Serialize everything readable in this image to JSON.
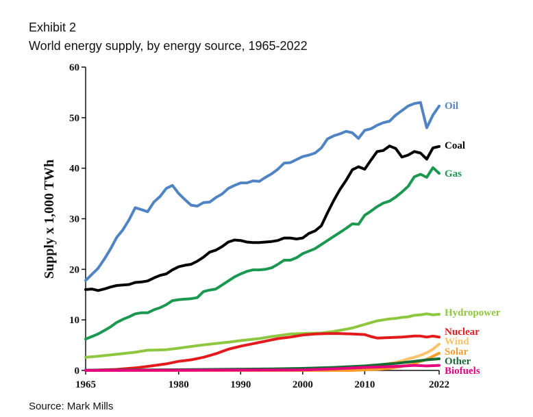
{
  "header": {
    "exhibit": "Exhibit 2",
    "title": "World energy supply, by energy source, 1965-2022"
  },
  "footer": {
    "source": "Source: Mark Mills"
  },
  "chart_data": {
    "type": "line",
    "title": "World energy supply, by energy source, 1965-2022",
    "xlabel": "",
    "ylabel": "Supply x 1,000 TWh",
    "xlim": [
      1965,
      2022
    ],
    "ylim": [
      0,
      60
    ],
    "x_ticks": [
      1965,
      1980,
      1990,
      2000,
      2010,
      2022
    ],
    "y_ticks": [
      0,
      10,
      20,
      30,
      40,
      50,
      60
    ],
    "grid": false,
    "legend": "inline-right",
    "series": [
      {
        "name": "Oil",
        "color": "#4f83c4",
        "points": [
          [
            1965,
            17.8
          ],
          [
            1966,
            19.0
          ],
          [
            1967,
            20.2
          ],
          [
            1968,
            22.0
          ],
          [
            1969,
            24.0
          ],
          [
            1970,
            26.3
          ],
          [
            1971,
            27.8
          ],
          [
            1972,
            29.8
          ],
          [
            1973,
            32.2
          ],
          [
            1974,
            31.8
          ],
          [
            1975,
            31.4
          ],
          [
            1976,
            33.3
          ],
          [
            1977,
            34.4
          ],
          [
            1978,
            36.0
          ],
          [
            1979,
            36.6
          ],
          [
            1980,
            35.0
          ],
          [
            1981,
            33.8
          ],
          [
            1982,
            32.7
          ],
          [
            1983,
            32.5
          ],
          [
            1984,
            33.2
          ],
          [
            1985,
            33.3
          ],
          [
            1986,
            34.2
          ],
          [
            1987,
            34.9
          ],
          [
            1988,
            36.0
          ],
          [
            1989,
            36.6
          ],
          [
            1990,
            37.1
          ],
          [
            1991,
            37.1
          ],
          [
            1992,
            37.5
          ],
          [
            1993,
            37.4
          ],
          [
            1994,
            38.2
          ],
          [
            1995,
            38.9
          ],
          [
            1996,
            39.8
          ],
          [
            1997,
            41.0
          ],
          [
            1998,
            41.1
          ],
          [
            1999,
            41.7
          ],
          [
            2000,
            42.3
          ],
          [
            2001,
            42.6
          ],
          [
            2002,
            43.0
          ],
          [
            2003,
            44.0
          ],
          [
            2004,
            45.8
          ],
          [
            2005,
            46.4
          ],
          [
            2006,
            46.8
          ],
          [
            2007,
            47.3
          ],
          [
            2008,
            47.0
          ],
          [
            2009,
            45.9
          ],
          [
            2010,
            47.5
          ],
          [
            2011,
            47.8
          ],
          [
            2012,
            48.5
          ],
          [
            2013,
            49.0
          ],
          [
            2014,
            49.3
          ],
          [
            2015,
            50.5
          ],
          [
            2016,
            51.4
          ],
          [
            2017,
            52.3
          ],
          [
            2018,
            52.8
          ],
          [
            2019,
            53.0
          ],
          [
            2020,
            48.0
          ],
          [
            2021,
            50.5
          ],
          [
            2022,
            52.3
          ]
        ]
      },
      {
        "name": "Coal",
        "color": "#000000",
        "points": [
          [
            1965,
            16.0
          ],
          [
            1966,
            16.1
          ],
          [
            1967,
            15.8
          ],
          [
            1968,
            16.1
          ],
          [
            1969,
            16.5
          ],
          [
            1970,
            16.8
          ],
          [
            1971,
            16.9
          ],
          [
            1972,
            17.0
          ],
          [
            1973,
            17.4
          ],
          [
            1974,
            17.5
          ],
          [
            1975,
            17.7
          ],
          [
            1976,
            18.3
          ],
          [
            1977,
            18.8
          ],
          [
            1978,
            19.1
          ],
          [
            1979,
            19.9
          ],
          [
            1980,
            20.5
          ],
          [
            1981,
            20.8
          ],
          [
            1982,
            21.0
          ],
          [
            1983,
            21.6
          ],
          [
            1984,
            22.4
          ],
          [
            1985,
            23.4
          ],
          [
            1986,
            23.8
          ],
          [
            1987,
            24.5
          ],
          [
            1988,
            25.4
          ],
          [
            1989,
            25.8
          ],
          [
            1990,
            25.7
          ],
          [
            1991,
            25.4
          ],
          [
            1992,
            25.3
          ],
          [
            1993,
            25.3
          ],
          [
            1994,
            25.4
          ],
          [
            1995,
            25.5
          ],
          [
            1996,
            25.7
          ],
          [
            1997,
            26.2
          ],
          [
            1998,
            26.2
          ],
          [
            1999,
            26.0
          ],
          [
            2000,
            26.2
          ],
          [
            2001,
            27.1
          ],
          [
            2002,
            27.6
          ],
          [
            2003,
            28.6
          ],
          [
            2004,
            31.2
          ],
          [
            2005,
            33.6
          ],
          [
            2006,
            35.8
          ],
          [
            2007,
            37.6
          ],
          [
            2008,
            39.7
          ],
          [
            2009,
            40.3
          ],
          [
            2010,
            39.8
          ],
          [
            2011,
            41.6
          ],
          [
            2012,
            43.3
          ],
          [
            2013,
            43.5
          ],
          [
            2014,
            44.4
          ],
          [
            2015,
            43.9
          ],
          [
            2016,
            42.2
          ],
          [
            2017,
            42.6
          ],
          [
            2018,
            43.3
          ],
          [
            2019,
            43.0
          ],
          [
            2020,
            41.8
          ],
          [
            2021,
            44.0
          ],
          [
            2022,
            44.3
          ]
        ]
      },
      {
        "name": "Gas",
        "color": "#1a9850",
        "points": [
          [
            1965,
            6.2
          ],
          [
            1966,
            6.7
          ],
          [
            1967,
            7.2
          ],
          [
            1968,
            7.9
          ],
          [
            1969,
            8.6
          ],
          [
            1970,
            9.5
          ],
          [
            1971,
            10.1
          ],
          [
            1972,
            10.6
          ],
          [
            1973,
            11.2
          ],
          [
            1974,
            11.4
          ],
          [
            1975,
            11.4
          ],
          [
            1976,
            12.0
          ],
          [
            1977,
            12.4
          ],
          [
            1978,
            13.0
          ],
          [
            1979,
            13.8
          ],
          [
            1980,
            14.0
          ],
          [
            1981,
            14.1
          ],
          [
            1982,
            14.2
          ],
          [
            1983,
            14.4
          ],
          [
            1984,
            15.6
          ],
          [
            1985,
            15.9
          ],
          [
            1986,
            16.1
          ],
          [
            1987,
            16.9
          ],
          [
            1988,
            17.7
          ],
          [
            1989,
            18.5
          ],
          [
            1990,
            19.1
          ],
          [
            1991,
            19.6
          ],
          [
            1992,
            19.9
          ],
          [
            1993,
            19.9
          ],
          [
            1994,
            20.0
          ],
          [
            1995,
            20.3
          ],
          [
            1996,
            21.0
          ],
          [
            1997,
            21.8
          ],
          [
            1998,
            21.8
          ],
          [
            1999,
            22.3
          ],
          [
            2000,
            23.1
          ],
          [
            2001,
            23.6
          ],
          [
            2002,
            24.1
          ],
          [
            2003,
            24.9
          ],
          [
            2004,
            25.7
          ],
          [
            2005,
            26.5
          ],
          [
            2006,
            27.3
          ],
          [
            2007,
            28.1
          ],
          [
            2008,
            29.0
          ],
          [
            2009,
            28.9
          ],
          [
            2010,
            30.7
          ],
          [
            2011,
            31.5
          ],
          [
            2012,
            32.4
          ],
          [
            2013,
            33.1
          ],
          [
            2014,
            33.5
          ],
          [
            2015,
            34.3
          ],
          [
            2016,
            35.3
          ],
          [
            2017,
            36.4
          ],
          [
            2018,
            38.3
          ],
          [
            2019,
            38.8
          ],
          [
            2020,
            38.2
          ],
          [
            2021,
            40.1
          ],
          [
            2022,
            39.0
          ]
        ]
      },
      {
        "name": "Hydropower",
        "color": "#8dc63f",
        "points": [
          [
            1965,
            2.6
          ],
          [
            1967,
            2.8
          ],
          [
            1970,
            3.2
          ],
          [
            1973,
            3.6
          ],
          [
            1975,
            4.0
          ],
          [
            1978,
            4.1
          ],
          [
            1980,
            4.4
          ],
          [
            1983,
            4.9
          ],
          [
            1985,
            5.2
          ],
          [
            1988,
            5.6
          ],
          [
            1990,
            5.9
          ],
          [
            1993,
            6.3
          ],
          [
            1995,
            6.7
          ],
          [
            1998,
            7.2
          ],
          [
            2000,
            7.3
          ],
          [
            2003,
            7.4
          ],
          [
            2005,
            7.7
          ],
          [
            2008,
            8.4
          ],
          [
            2010,
            9.1
          ],
          [
            2012,
            9.8
          ],
          [
            2014,
            10.2
          ],
          [
            2015,
            10.3
          ],
          [
            2016,
            10.5
          ],
          [
            2017,
            10.6
          ],
          [
            2018,
            10.9
          ],
          [
            2019,
            11.0
          ],
          [
            2020,
            11.2
          ],
          [
            2021,
            11.0
          ],
          [
            2022,
            11.1
          ]
        ]
      },
      {
        "name": "Nuclear",
        "color": "#e31a1c",
        "points": [
          [
            1965,
            0.0
          ],
          [
            1970,
            0.2
          ],
          [
            1973,
            0.5
          ],
          [
            1975,
            0.8
          ],
          [
            1978,
            1.3
          ],
          [
            1980,
            1.8
          ],
          [
            1982,
            2.1
          ],
          [
            1984,
            2.6
          ],
          [
            1986,
            3.3
          ],
          [
            1988,
            4.2
          ],
          [
            1990,
            4.8
          ],
          [
            1992,
            5.3
          ],
          [
            1994,
            5.8
          ],
          [
            1996,
            6.3
          ],
          [
            1998,
            6.6
          ],
          [
            2000,
            7.0
          ],
          [
            2002,
            7.2
          ],
          [
            2004,
            7.3
          ],
          [
            2006,
            7.3
          ],
          [
            2008,
            7.2
          ],
          [
            2010,
            7.1
          ],
          [
            2011,
            6.7
          ],
          [
            2012,
            6.4
          ],
          [
            2014,
            6.5
          ],
          [
            2016,
            6.6
          ],
          [
            2018,
            6.8
          ],
          [
            2019,
            6.8
          ],
          [
            2020,
            6.6
          ],
          [
            2021,
            6.8
          ],
          [
            2022,
            6.6
          ]
        ]
      },
      {
        "name": "Wind",
        "color": "#fdc26a",
        "points": [
          [
            1965,
            0.0
          ],
          [
            2000,
            0.0
          ],
          [
            2005,
            0.1
          ],
          [
            2008,
            0.3
          ],
          [
            2010,
            0.6
          ],
          [
            2012,
            1.0
          ],
          [
            2014,
            1.4
          ],
          [
            2015,
            1.6
          ],
          [
            2016,
            1.9
          ],
          [
            2017,
            2.3
          ],
          [
            2018,
            2.6
          ],
          [
            2019,
            3.0
          ],
          [
            2020,
            3.5
          ],
          [
            2021,
            4.2
          ],
          [
            2022,
            5.2
          ]
        ]
      },
      {
        "name": "Solar",
        "color": "#f89c2a",
        "points": [
          [
            1965,
            0.0
          ],
          [
            2008,
            0.0
          ],
          [
            2010,
            0.1
          ],
          [
            2012,
            0.2
          ],
          [
            2014,
            0.4
          ],
          [
            2016,
            0.8
          ],
          [
            2018,
            1.3
          ],
          [
            2019,
            1.8
          ],
          [
            2020,
            2.2
          ],
          [
            2021,
            2.8
          ],
          [
            2022,
            3.4
          ]
        ]
      },
      {
        "name": "Other",
        "color": "#166b34",
        "points": [
          [
            1965,
            0.05
          ],
          [
            1975,
            0.1
          ],
          [
            1985,
            0.2
          ],
          [
            1995,
            0.3
          ],
          [
            2000,
            0.4
          ],
          [
            2005,
            0.6
          ],
          [
            2010,
            0.9
          ],
          [
            2015,
            1.4
          ],
          [
            2018,
            1.8
          ],
          [
            2020,
            2.1
          ],
          [
            2022,
            2.3
          ]
        ]
      },
      {
        "name": "Biofuels",
        "color": "#e6007e",
        "points": [
          [
            1965,
            0.0
          ],
          [
            2000,
            0.1
          ],
          [
            2005,
            0.3
          ],
          [
            2010,
            0.6
          ],
          [
            2015,
            0.8
          ],
          [
            2018,
            1.0
          ],
          [
            2020,
            0.9
          ],
          [
            2022,
            1.0
          ]
        ]
      }
    ]
  }
}
